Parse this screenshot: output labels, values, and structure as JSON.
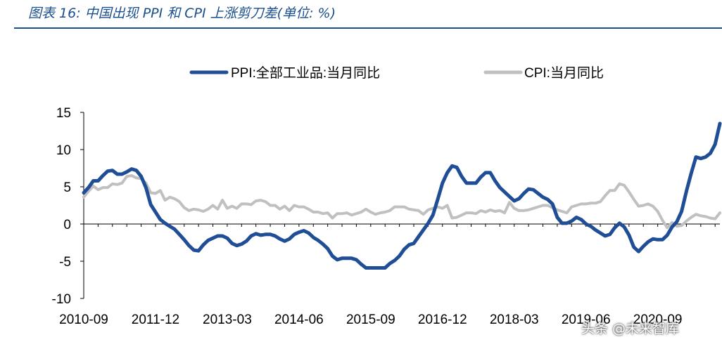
{
  "title": "图表 16:  中国出现 PPI 和 CPI 上涨剪刀差(单位:  %)",
  "watermark": "头条 @未来智库",
  "colors": {
    "ppi": "#1f4e96",
    "cpi": "#c0c0c0",
    "title": "#1a4f8e"
  },
  "chart_data": {
    "type": "line",
    "title": "图表 16:  中国出现 PPI 和 CPI 上涨剪刀差(单位:  %)",
    "ylim": [
      -10,
      15
    ],
    "yticks": [
      15,
      10,
      5,
      0,
      -5,
      -10
    ],
    "xlim": [
      "2010-09",
      "2021-09"
    ],
    "xticks": [
      "2010-09",
      "2011-12",
      "2013-03",
      "2014-06",
      "2015-09",
      "2016-12",
      "2018-03",
      "2019-06",
      "2020-09"
    ],
    "legend": "top",
    "grid": false,
    "series": [
      {
        "name": "PPI:全部工业品:当月同比",
        "color": "#1f4e96",
        "points": [
          [
            "2010-09",
            4.2
          ],
          [
            "2010-10",
            4.9
          ],
          [
            "2010-11",
            5.8
          ],
          [
            "2010-12",
            5.8
          ],
          [
            "2011-01",
            6.5
          ],
          [
            "2011-02",
            7.1
          ],
          [
            "2011-03",
            7.2
          ],
          [
            "2011-04",
            6.7
          ],
          [
            "2011-05",
            6.7
          ],
          [
            "2011-06",
            7.0
          ],
          [
            "2011-07",
            7.4
          ],
          [
            "2011-08",
            7.2
          ],
          [
            "2011-09",
            6.4
          ],
          [
            "2011-10",
            4.9
          ],
          [
            "2011-11",
            2.6
          ],
          [
            "2011-12",
            1.6
          ],
          [
            "2012-01",
            0.6
          ],
          [
            "2012-02",
            0.1
          ],
          [
            "2012-03",
            -0.3
          ],
          [
            "2012-04",
            -0.7
          ],
          [
            "2012-05",
            -1.4
          ],
          [
            "2012-06",
            -2.1
          ],
          [
            "2012-07",
            -2.9
          ],
          [
            "2012-08",
            -3.5
          ],
          [
            "2012-09",
            -3.6
          ],
          [
            "2012-10",
            -2.8
          ],
          [
            "2012-11",
            -2.2
          ],
          [
            "2012-12",
            -1.9
          ],
          [
            "2013-01",
            -1.6
          ],
          [
            "2013-02",
            -1.6
          ],
          [
            "2013-03",
            -1.9
          ],
          [
            "2013-04",
            -2.6
          ],
          [
            "2013-05",
            -2.9
          ],
          [
            "2013-06",
            -2.7
          ],
          [
            "2013-07",
            -2.3
          ],
          [
            "2013-08",
            -1.6
          ],
          [
            "2013-09",
            -1.3
          ],
          [
            "2013-10",
            -1.5
          ],
          [
            "2013-11",
            -1.4
          ],
          [
            "2013-12",
            -1.4
          ],
          [
            "2014-01",
            -1.6
          ],
          [
            "2014-02",
            -2.0
          ],
          [
            "2014-03",
            -2.3
          ],
          [
            "2014-04",
            -2.0
          ],
          [
            "2014-05",
            -1.4
          ],
          [
            "2014-06",
            -1.1
          ],
          [
            "2014-07",
            -0.9
          ],
          [
            "2014-08",
            -1.2
          ],
          [
            "2014-09",
            -1.8
          ],
          [
            "2014-10",
            -2.2
          ],
          [
            "2014-11",
            -2.7
          ],
          [
            "2014-12",
            -3.3
          ],
          [
            "2015-01",
            -4.3
          ],
          [
            "2015-02",
            -4.8
          ],
          [
            "2015-03",
            -4.6
          ],
          [
            "2015-04",
            -4.6
          ],
          [
            "2015-05",
            -4.6
          ],
          [
            "2015-06",
            -4.8
          ],
          [
            "2015-07",
            -5.4
          ],
          [
            "2015-08",
            -5.9
          ],
          [
            "2015-09",
            -5.9
          ],
          [
            "2015-10",
            -5.9
          ],
          [
            "2015-11",
            -5.9
          ],
          [
            "2015-12",
            -5.9
          ],
          [
            "2016-01",
            -5.3
          ],
          [
            "2016-02",
            -4.9
          ],
          [
            "2016-03",
            -4.3
          ],
          [
            "2016-04",
            -3.4
          ],
          [
            "2016-05",
            -2.8
          ],
          [
            "2016-06",
            -2.6
          ],
          [
            "2016-07",
            -1.7
          ],
          [
            "2016-08",
            -0.8
          ],
          [
            "2016-09",
            0.1
          ],
          [
            "2016-10",
            1.2
          ],
          [
            "2016-11",
            3.3
          ],
          [
            "2016-12",
            5.5
          ],
          [
            "2017-01",
            6.9
          ],
          [
            "2017-02",
            7.8
          ],
          [
            "2017-03",
            7.6
          ],
          [
            "2017-04",
            6.4
          ],
          [
            "2017-05",
            5.5
          ],
          [
            "2017-06",
            5.5
          ],
          [
            "2017-07",
            5.5
          ],
          [
            "2017-08",
            6.3
          ],
          [
            "2017-09",
            6.9
          ],
          [
            "2017-10",
            6.9
          ],
          [
            "2017-11",
            5.8
          ],
          [
            "2017-12",
            4.9
          ],
          [
            "2018-01",
            4.3
          ],
          [
            "2018-02",
            3.7
          ],
          [
            "2018-03",
            3.1
          ],
          [
            "2018-04",
            3.4
          ],
          [
            "2018-05",
            4.1
          ],
          [
            "2018-06",
            4.7
          ],
          [
            "2018-07",
            4.6
          ],
          [
            "2018-08",
            4.1
          ],
          [
            "2018-09",
            3.6
          ],
          [
            "2018-10",
            3.3
          ],
          [
            "2018-11",
            2.7
          ],
          [
            "2018-12",
            0.9
          ],
          [
            "2019-01",
            0.1
          ],
          [
            "2019-02",
            0.1
          ],
          [
            "2019-03",
            0.4
          ],
          [
            "2019-04",
            0.9
          ],
          [
            "2019-05",
            0.6
          ],
          [
            "2019-06",
            0.0
          ],
          [
            "2019-07",
            -0.3
          ],
          [
            "2019-08",
            -0.8
          ],
          [
            "2019-09",
            -1.2
          ],
          [
            "2019-10",
            -1.6
          ],
          [
            "2019-11",
            -1.4
          ],
          [
            "2019-12",
            -0.5
          ],
          [
            "2020-01",
            0.1
          ],
          [
            "2020-02",
            -0.4
          ],
          [
            "2020-03",
            -1.5
          ],
          [
            "2020-04",
            -3.1
          ],
          [
            "2020-05",
            -3.7
          ],
          [
            "2020-06",
            -3.0
          ],
          [
            "2020-07",
            -2.4
          ],
          [
            "2020-08",
            -2.0
          ],
          [
            "2020-09",
            -2.1
          ],
          [
            "2020-10",
            -2.1
          ],
          [
            "2020-11",
            -1.5
          ],
          [
            "2020-12",
            -0.4
          ],
          [
            "2021-01",
            0.3
          ],
          [
            "2021-02",
            1.7
          ],
          [
            "2021-03",
            4.4
          ],
          [
            "2021-04",
            6.8
          ],
          [
            "2021-05",
            9.0
          ],
          [
            "2021-06",
            8.8
          ],
          [
            "2021-07",
            9.0
          ],
          [
            "2021-08",
            9.5
          ],
          [
            "2021-09",
            10.7
          ],
          [
            "2021-10",
            13.5
          ]
        ]
      },
      {
        "name": "CPI:当月同比",
        "color": "#c0c0c0",
        "points": [
          [
            "2010-09",
            3.6
          ],
          [
            "2010-10",
            4.4
          ],
          [
            "2010-11",
            5.1
          ],
          [
            "2010-12",
            4.6
          ],
          [
            "2011-01",
            4.9
          ],
          [
            "2011-02",
            4.9
          ],
          [
            "2011-03",
            5.4
          ],
          [
            "2011-04",
            5.3
          ],
          [
            "2011-05",
            5.5
          ],
          [
            "2011-06",
            6.4
          ],
          [
            "2011-07",
            6.5
          ],
          [
            "2011-08",
            6.2
          ],
          [
            "2011-09",
            6.1
          ],
          [
            "2011-10",
            5.5
          ],
          [
            "2011-11",
            4.2
          ],
          [
            "2011-12",
            4.1
          ],
          [
            "2012-01",
            4.5
          ],
          [
            "2012-02",
            3.2
          ],
          [
            "2012-03",
            3.6
          ],
          [
            "2012-04",
            3.4
          ],
          [
            "2012-05",
            3.0
          ],
          [
            "2012-06",
            2.2
          ],
          [
            "2012-07",
            1.8
          ],
          [
            "2012-08",
            2.0
          ],
          [
            "2012-09",
            1.9
          ],
          [
            "2012-10",
            1.7
          ],
          [
            "2012-11",
            2.0
          ],
          [
            "2012-12",
            2.5
          ],
          [
            "2013-01",
            2.0
          ],
          [
            "2013-02",
            3.2
          ],
          [
            "2013-03",
            2.1
          ],
          [
            "2013-04",
            2.4
          ],
          [
            "2013-05",
            2.1
          ],
          [
            "2013-06",
            2.7
          ],
          [
            "2013-07",
            2.7
          ],
          [
            "2013-08",
            2.6
          ],
          [
            "2013-09",
            3.1
          ],
          [
            "2013-10",
            3.2
          ],
          [
            "2013-11",
            3.0
          ],
          [
            "2013-12",
            2.5
          ],
          [
            "2014-01",
            2.5
          ],
          [
            "2014-02",
            2.0
          ],
          [
            "2014-03",
            2.4
          ],
          [
            "2014-04",
            1.8
          ],
          [
            "2014-05",
            2.5
          ],
          [
            "2014-06",
            2.3
          ],
          [
            "2014-07",
            2.3
          ],
          [
            "2014-08",
            2.0
          ],
          [
            "2014-09",
            1.6
          ],
          [
            "2014-10",
            1.6
          ],
          [
            "2014-11",
            1.4
          ],
          [
            "2014-12",
            1.5
          ],
          [
            "2015-01",
            0.8
          ],
          [
            "2015-02",
            1.4
          ],
          [
            "2015-03",
            1.4
          ],
          [
            "2015-04",
            1.5
          ],
          [
            "2015-05",
            1.2
          ],
          [
            "2015-06",
            1.4
          ],
          [
            "2015-07",
            1.6
          ],
          [
            "2015-08",
            2.0
          ],
          [
            "2015-09",
            1.6
          ],
          [
            "2015-10",
            1.3
          ],
          [
            "2015-11",
            1.5
          ],
          [
            "2015-12",
            1.6
          ],
          [
            "2016-01",
            1.8
          ],
          [
            "2016-02",
            2.3
          ],
          [
            "2016-03",
            2.3
          ],
          [
            "2016-04",
            2.3
          ],
          [
            "2016-05",
            2.0
          ],
          [
            "2016-06",
            1.9
          ],
          [
            "2016-07",
            1.8
          ],
          [
            "2016-08",
            1.3
          ],
          [
            "2016-09",
            1.9
          ],
          [
            "2016-10",
            2.1
          ],
          [
            "2016-11",
            2.3
          ],
          [
            "2016-12",
            2.1
          ],
          [
            "2017-01",
            2.5
          ],
          [
            "2017-02",
            0.8
          ],
          [
            "2017-03",
            0.9
          ],
          [
            "2017-04",
            1.2
          ],
          [
            "2017-05",
            1.5
          ],
          [
            "2017-06",
            1.5
          ],
          [
            "2017-07",
            1.4
          ],
          [
            "2017-08",
            1.8
          ],
          [
            "2017-09",
            1.6
          ],
          [
            "2017-10",
            1.9
          ],
          [
            "2017-11",
            1.7
          ],
          [
            "2017-12",
            1.8
          ],
          [
            "2018-01",
            1.5
          ],
          [
            "2018-02",
            2.9
          ],
          [
            "2018-03",
            2.1
          ],
          [
            "2018-04",
            1.8
          ],
          [
            "2018-05",
            1.8
          ],
          [
            "2018-06",
            1.9
          ],
          [
            "2018-07",
            2.1
          ],
          [
            "2018-08",
            2.3
          ],
          [
            "2018-09",
            2.5
          ],
          [
            "2018-10",
            2.5
          ],
          [
            "2018-11",
            2.2
          ],
          [
            "2018-12",
            1.9
          ],
          [
            "2019-01",
            1.7
          ],
          [
            "2019-02",
            1.5
          ],
          [
            "2019-03",
            2.3
          ],
          [
            "2019-04",
            2.5
          ],
          [
            "2019-05",
            2.7
          ],
          [
            "2019-06",
            2.7
          ],
          [
            "2019-07",
            2.8
          ],
          [
            "2019-08",
            2.8
          ],
          [
            "2019-09",
            3.0
          ],
          [
            "2019-10",
            3.8
          ],
          [
            "2019-11",
            4.5
          ],
          [
            "2019-12",
            4.5
          ],
          [
            "2020-01",
            5.4
          ],
          [
            "2020-02",
            5.2
          ],
          [
            "2020-03",
            4.3
          ],
          [
            "2020-04",
            3.3
          ],
          [
            "2020-05",
            2.4
          ],
          [
            "2020-06",
            2.5
          ],
          [
            "2020-07",
            2.7
          ],
          [
            "2020-08",
            2.4
          ],
          [
            "2020-09",
            1.7
          ],
          [
            "2020-10",
            0.5
          ],
          [
            "2020-11",
            -0.5
          ],
          [
            "2020-12",
            0.2
          ],
          [
            "2021-01",
            -0.3
          ],
          [
            "2021-02",
            -0.2
          ],
          [
            "2021-03",
            0.4
          ],
          [
            "2021-04",
            0.9
          ],
          [
            "2021-05",
            1.3
          ],
          [
            "2021-06",
            1.1
          ],
          [
            "2021-07",
            1.0
          ],
          [
            "2021-08",
            0.8
          ],
          [
            "2021-09",
            0.7
          ],
          [
            "2021-10",
            1.5
          ]
        ]
      }
    ]
  }
}
